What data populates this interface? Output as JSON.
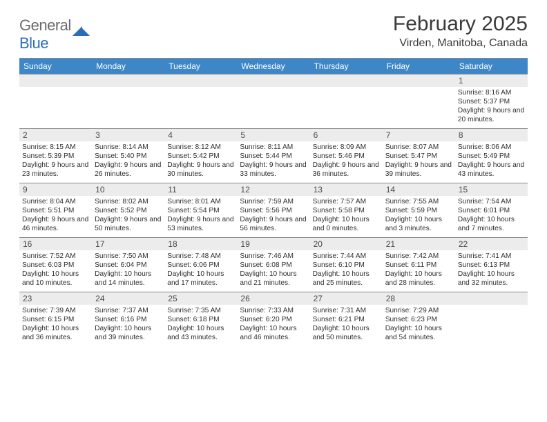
{
  "logo": {
    "text_gray": "General",
    "text_blue": "Blue",
    "mark_color": "#2a6db8"
  },
  "title": "February 2025",
  "location": "Virden, Manitoba, Canada",
  "colors": {
    "header_bar": "#3d87c9",
    "header_text": "#ffffff",
    "daynum_bg": "#ececec",
    "rule": "#888888"
  },
  "days_of_week": [
    "Sunday",
    "Monday",
    "Tuesday",
    "Wednesday",
    "Thursday",
    "Friday",
    "Saturday"
  ],
  "weeks": [
    [
      {
        "n": "",
        "sunrise": "",
        "sunset": "",
        "daylight": ""
      },
      {
        "n": "",
        "sunrise": "",
        "sunset": "",
        "daylight": ""
      },
      {
        "n": "",
        "sunrise": "",
        "sunset": "",
        "daylight": ""
      },
      {
        "n": "",
        "sunrise": "",
        "sunset": "",
        "daylight": ""
      },
      {
        "n": "",
        "sunrise": "",
        "sunset": "",
        "daylight": ""
      },
      {
        "n": "",
        "sunrise": "",
        "sunset": "",
        "daylight": ""
      },
      {
        "n": "1",
        "sunrise": "Sunrise: 8:16 AM",
        "sunset": "Sunset: 5:37 PM",
        "daylight": "Daylight: 9 hours and 20 minutes."
      }
    ],
    [
      {
        "n": "2",
        "sunrise": "Sunrise: 8:15 AM",
        "sunset": "Sunset: 5:39 PM",
        "daylight": "Daylight: 9 hours and 23 minutes."
      },
      {
        "n": "3",
        "sunrise": "Sunrise: 8:14 AM",
        "sunset": "Sunset: 5:40 PM",
        "daylight": "Daylight: 9 hours and 26 minutes."
      },
      {
        "n": "4",
        "sunrise": "Sunrise: 8:12 AM",
        "sunset": "Sunset: 5:42 PM",
        "daylight": "Daylight: 9 hours and 30 minutes."
      },
      {
        "n": "5",
        "sunrise": "Sunrise: 8:11 AM",
        "sunset": "Sunset: 5:44 PM",
        "daylight": "Daylight: 9 hours and 33 minutes."
      },
      {
        "n": "6",
        "sunrise": "Sunrise: 8:09 AM",
        "sunset": "Sunset: 5:46 PM",
        "daylight": "Daylight: 9 hours and 36 minutes."
      },
      {
        "n": "7",
        "sunrise": "Sunrise: 8:07 AM",
        "sunset": "Sunset: 5:47 PM",
        "daylight": "Daylight: 9 hours and 39 minutes."
      },
      {
        "n": "8",
        "sunrise": "Sunrise: 8:06 AM",
        "sunset": "Sunset: 5:49 PM",
        "daylight": "Daylight: 9 hours and 43 minutes."
      }
    ],
    [
      {
        "n": "9",
        "sunrise": "Sunrise: 8:04 AM",
        "sunset": "Sunset: 5:51 PM",
        "daylight": "Daylight: 9 hours and 46 minutes."
      },
      {
        "n": "10",
        "sunrise": "Sunrise: 8:02 AM",
        "sunset": "Sunset: 5:52 PM",
        "daylight": "Daylight: 9 hours and 50 minutes."
      },
      {
        "n": "11",
        "sunrise": "Sunrise: 8:01 AM",
        "sunset": "Sunset: 5:54 PM",
        "daylight": "Daylight: 9 hours and 53 minutes."
      },
      {
        "n": "12",
        "sunrise": "Sunrise: 7:59 AM",
        "sunset": "Sunset: 5:56 PM",
        "daylight": "Daylight: 9 hours and 56 minutes."
      },
      {
        "n": "13",
        "sunrise": "Sunrise: 7:57 AM",
        "sunset": "Sunset: 5:58 PM",
        "daylight": "Daylight: 10 hours and 0 minutes."
      },
      {
        "n": "14",
        "sunrise": "Sunrise: 7:55 AM",
        "sunset": "Sunset: 5:59 PM",
        "daylight": "Daylight: 10 hours and 3 minutes."
      },
      {
        "n": "15",
        "sunrise": "Sunrise: 7:54 AM",
        "sunset": "Sunset: 6:01 PM",
        "daylight": "Daylight: 10 hours and 7 minutes."
      }
    ],
    [
      {
        "n": "16",
        "sunrise": "Sunrise: 7:52 AM",
        "sunset": "Sunset: 6:03 PM",
        "daylight": "Daylight: 10 hours and 10 minutes."
      },
      {
        "n": "17",
        "sunrise": "Sunrise: 7:50 AM",
        "sunset": "Sunset: 6:04 PM",
        "daylight": "Daylight: 10 hours and 14 minutes."
      },
      {
        "n": "18",
        "sunrise": "Sunrise: 7:48 AM",
        "sunset": "Sunset: 6:06 PM",
        "daylight": "Daylight: 10 hours and 17 minutes."
      },
      {
        "n": "19",
        "sunrise": "Sunrise: 7:46 AM",
        "sunset": "Sunset: 6:08 PM",
        "daylight": "Daylight: 10 hours and 21 minutes."
      },
      {
        "n": "20",
        "sunrise": "Sunrise: 7:44 AM",
        "sunset": "Sunset: 6:10 PM",
        "daylight": "Daylight: 10 hours and 25 minutes."
      },
      {
        "n": "21",
        "sunrise": "Sunrise: 7:42 AM",
        "sunset": "Sunset: 6:11 PM",
        "daylight": "Daylight: 10 hours and 28 minutes."
      },
      {
        "n": "22",
        "sunrise": "Sunrise: 7:41 AM",
        "sunset": "Sunset: 6:13 PM",
        "daylight": "Daylight: 10 hours and 32 minutes."
      }
    ],
    [
      {
        "n": "23",
        "sunrise": "Sunrise: 7:39 AM",
        "sunset": "Sunset: 6:15 PM",
        "daylight": "Daylight: 10 hours and 36 minutes."
      },
      {
        "n": "24",
        "sunrise": "Sunrise: 7:37 AM",
        "sunset": "Sunset: 6:16 PM",
        "daylight": "Daylight: 10 hours and 39 minutes."
      },
      {
        "n": "25",
        "sunrise": "Sunrise: 7:35 AM",
        "sunset": "Sunset: 6:18 PM",
        "daylight": "Daylight: 10 hours and 43 minutes."
      },
      {
        "n": "26",
        "sunrise": "Sunrise: 7:33 AM",
        "sunset": "Sunset: 6:20 PM",
        "daylight": "Daylight: 10 hours and 46 minutes."
      },
      {
        "n": "27",
        "sunrise": "Sunrise: 7:31 AM",
        "sunset": "Sunset: 6:21 PM",
        "daylight": "Daylight: 10 hours and 50 minutes."
      },
      {
        "n": "28",
        "sunrise": "Sunrise: 7:29 AM",
        "sunset": "Sunset: 6:23 PM",
        "daylight": "Daylight: 10 hours and 54 minutes."
      },
      {
        "n": "",
        "sunrise": "",
        "sunset": "",
        "daylight": ""
      }
    ]
  ]
}
